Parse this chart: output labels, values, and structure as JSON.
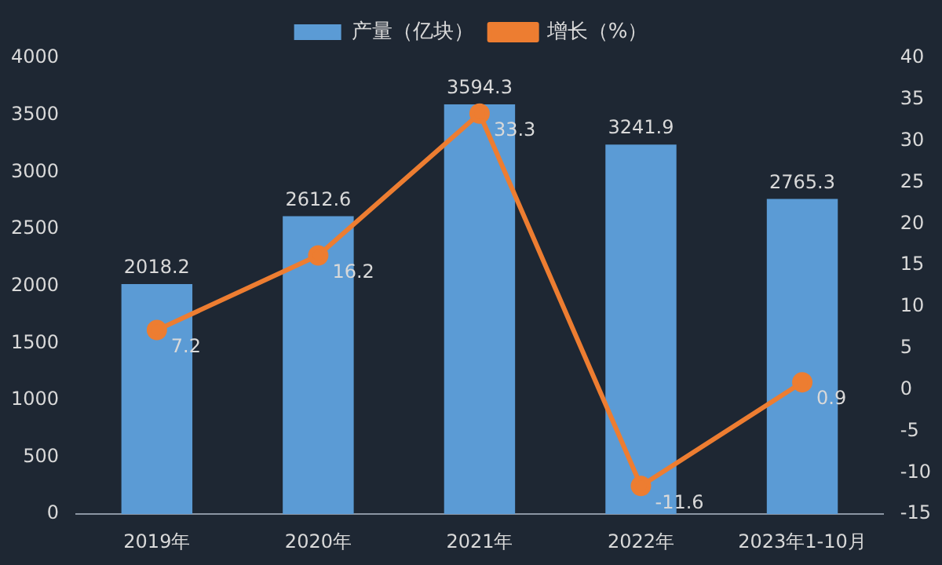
{
  "chart_data": {
    "type": "bar",
    "categories": [
      "2019年",
      "2020年",
      "2021年",
      "2022年",
      "2023年1-10月"
    ],
    "series": [
      {
        "name": "产量（亿块）",
        "color": "#5b9bd5",
        "values": [
          2018.2,
          2612.6,
          3594.3,
          3241.9,
          2765.3
        ]
      },
      {
        "name": "增长（%）",
        "type": "line",
        "axis": "y2",
        "color": "#ed7d31",
        "values": [
          7.2,
          16.2,
          33.3,
          -11.6,
          0.9
        ]
      }
    ],
    "ylim": [
      0,
      4000
    ],
    "yticks": [
      0,
      500,
      1000,
      1500,
      2000,
      2500,
      3000,
      3500,
      4000
    ],
    "y2lim": [
      -15,
      40
    ],
    "y2ticks": [
      -15,
      -10,
      -5,
      0,
      5,
      10,
      15,
      20,
      25,
      30,
      35,
      40
    ],
    "legend": "top",
    "data_labels": true,
    "marker": "circle"
  }
}
